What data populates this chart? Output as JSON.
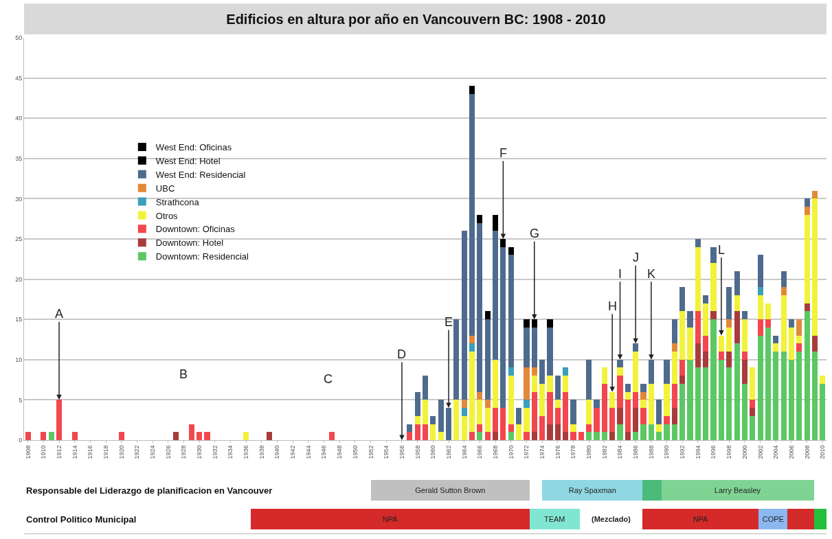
{
  "chart_data": [
    {
      "type": "bar",
      "stacked": true,
      "title": "Edificios en altura por año en Vancouvern BC: 1908 - 2010",
      "x": [
        1908,
        1909,
        1910,
        1911,
        1912,
        1913,
        1914,
        1915,
        1916,
        1917,
        1918,
        1919,
        1920,
        1921,
        1922,
        1923,
        1924,
        1925,
        1926,
        1927,
        1928,
        1929,
        1930,
        1931,
        1932,
        1933,
        1934,
        1935,
        1936,
        1937,
        1938,
        1939,
        1940,
        1941,
        1942,
        1943,
        1944,
        1945,
        1946,
        1947,
        1948,
        1949,
        1950,
        1951,
        1952,
        1953,
        1954,
        1955,
        1956,
        1957,
        1958,
        1959,
        1960,
        1961,
        1962,
        1963,
        1964,
        1965,
        1966,
        1967,
        1968,
        1969,
        1970,
        1971,
        1972,
        1973,
        1974,
        1975,
        1976,
        1977,
        1978,
        1979,
        1980,
        1981,
        1982,
        1983,
        1984,
        1985,
        1986,
        1987,
        1988,
        1989,
        1990,
        1991,
        1992,
        1993,
        1994,
        1995,
        1996,
        1997,
        1998,
        1999,
        2000,
        2001,
        2002,
        2003,
        2004,
        2005,
        2006,
        2007,
        2008,
        2009,
        2010
      ],
      "series": [
        {
          "name": "Downtown: Residencial",
          "color": "#5cc864",
          "values": [
            0,
            0,
            0,
            1,
            0,
            0,
            0,
            0,
            0,
            0,
            0,
            0,
            0,
            0,
            0,
            0,
            0,
            0,
            0,
            0,
            0,
            0,
            0,
            0,
            0,
            0,
            0,
            0,
            0,
            0,
            0,
            0,
            0,
            0,
            0,
            0,
            0,
            0,
            0,
            0,
            0,
            0,
            0,
            0,
            0,
            0,
            0,
            0,
            0,
            0,
            0,
            0,
            0,
            0,
            0,
            0,
            0,
            0,
            1,
            0,
            0,
            0,
            1,
            0,
            0,
            0,
            0,
            0,
            0,
            0,
            0,
            0,
            1,
            1,
            1,
            0,
            2,
            0,
            1,
            2,
            2,
            1,
            2,
            2,
            7,
            10,
            9,
            9,
            15,
            10,
            9,
            12,
            7,
            3,
            13,
            14,
            11,
            11,
            10,
            11,
            16,
            11,
            7
          ]
        },
        {
          "name": "Downtown: Hotel",
          "color": "#a83c3c",
          "values": [
            0,
            0,
            0,
            0,
            0,
            0,
            0,
            0,
            0,
            0,
            0,
            0,
            0,
            0,
            0,
            0,
            0,
            0,
            0,
            1,
            0,
            0,
            0,
            0,
            0,
            0,
            0,
            0,
            0,
            0,
            0,
            1,
            0,
            0,
            0,
            0,
            0,
            0,
            0,
            0,
            0,
            0,
            0,
            0,
            0,
            0,
            0,
            0,
            0,
            0,
            0,
            0,
            0,
            0,
            0,
            0,
            0,
            0,
            0,
            0,
            1,
            0,
            0,
            0,
            0,
            1,
            0,
            2,
            2,
            1,
            0,
            0,
            0,
            0,
            0,
            1,
            2,
            1,
            3,
            0,
            0,
            0,
            0,
            2,
            1,
            0,
            3,
            2,
            1,
            0,
            2,
            4,
            3,
            1,
            0,
            0,
            0,
            0,
            0,
            0,
            1,
            2,
            0
          ]
        },
        {
          "name": "Downtown: Oficinas",
          "color": "#f2474e",
          "values": [
            1,
            0,
            1,
            0,
            5,
            0,
            1,
            0,
            0,
            0,
            0,
            0,
            1,
            0,
            0,
            0,
            0,
            0,
            0,
            0,
            0,
            2,
            1,
            1,
            0,
            0,
            0,
            0,
            0,
            0,
            0,
            0,
            0,
            0,
            0,
            0,
            0,
            0,
            0,
            1,
            0,
            0,
            0,
            0,
            0,
            0,
            0,
            0,
            0,
            1,
            2,
            2,
            0,
            0,
            0,
            0,
            0,
            1,
            1,
            1,
            3,
            4,
            1,
            0,
            1,
            5,
            3,
            4,
            2,
            5,
            1,
            1,
            1,
            3,
            6,
            3,
            4,
            4,
            2,
            2,
            0,
            0,
            1,
            3,
            2,
            0,
            4,
            2,
            0,
            1,
            0,
            0,
            1,
            1,
            2,
            1,
            0,
            0,
            0,
            1,
            0,
            0,
            0
          ]
        },
        {
          "name": "Otros",
          "color": "#f2f23a",
          "values": [
            0,
            0,
            0,
            0,
            0,
            0,
            0,
            0,
            0,
            0,
            0,
            0,
            0,
            0,
            0,
            0,
            0,
            0,
            0,
            0,
            0,
            0,
            0,
            0,
            0,
            0,
            0,
            0,
            1,
            0,
            0,
            0,
            0,
            0,
            0,
            0,
            0,
            0,
            0,
            0,
            0,
            0,
            0,
            0,
            0,
            0,
            0,
            0,
            0,
            0,
            1,
            3,
            2,
            1,
            0,
            5,
            3,
            10,
            3,
            3,
            6,
            0,
            6,
            2,
            3,
            2,
            4,
            2,
            1,
            2,
            1,
            0,
            3,
            0,
            2,
            2,
            1,
            1,
            5,
            1,
            5,
            1,
            4,
            4,
            6,
            4,
            8,
            4,
            6,
            2,
            3,
            2,
            4,
            4,
            3,
            2,
            1,
            7,
            4,
            1,
            11,
            17,
            1
          ]
        },
        {
          "name": "Strathcona",
          "color": "#3a9fba",
          "values": [
            0,
            0,
            0,
            0,
            0,
            0,
            0,
            0,
            0,
            0,
            0,
            0,
            0,
            0,
            0,
            0,
            0,
            0,
            0,
            0,
            0,
            0,
            0,
            0,
            0,
            0,
            0,
            0,
            0,
            0,
            0,
            0,
            0,
            0,
            0,
            0,
            0,
            0,
            0,
            0,
            0,
            0,
            0,
            0,
            0,
            0,
            0,
            0,
            0,
            0,
            0,
            0,
            0,
            0,
            0,
            0,
            1,
            1,
            0,
            0,
            0,
            0,
            1,
            0,
            1,
            0,
            0,
            0,
            0,
            1,
            0,
            0,
            0,
            0,
            0,
            0,
            0,
            0,
            0,
            0,
            0,
            0,
            0,
            0,
            0,
            0,
            0,
            0,
            0,
            0,
            0,
            0,
            0,
            0,
            1,
            0,
            0,
            0,
            0,
            0,
            0,
            0,
            0
          ]
        },
        {
          "name": "UBC",
          "color": "#e2883a",
          "values": [
            0,
            0,
            0,
            0,
            0,
            0,
            0,
            0,
            0,
            0,
            0,
            0,
            0,
            0,
            0,
            0,
            0,
            0,
            0,
            0,
            0,
            0,
            0,
            0,
            0,
            0,
            0,
            0,
            0,
            0,
            0,
            0,
            0,
            0,
            0,
            0,
            0,
            0,
            0,
            0,
            0,
            0,
            0,
            0,
            0,
            0,
            0,
            0,
            0,
            0,
            0,
            0,
            0,
            0,
            0,
            0,
            1,
            1,
            1,
            1,
            0,
            0,
            0,
            0,
            4,
            1,
            0,
            0,
            0,
            0,
            0,
            0,
            0,
            0,
            0,
            0,
            0,
            0,
            0,
            1,
            0,
            0,
            0,
            1,
            0,
            0,
            0,
            0,
            0,
            0,
            1,
            0,
            0,
            0,
            0,
            0,
            0,
            1,
            0,
            2,
            1,
            1,
            0
          ]
        },
        {
          "name": "West End: Residencial",
          "color": "#4e6b8e",
          "values": [
            0,
            0,
            0,
            0,
            0,
            0,
            0,
            0,
            0,
            0,
            0,
            0,
            0,
            0,
            0,
            0,
            0,
            0,
            0,
            0,
            0,
            0,
            0,
            0,
            0,
            0,
            0,
            0,
            0,
            0,
            0,
            0,
            0,
            0,
            0,
            0,
            0,
            0,
            0,
            0,
            0,
            0,
            0,
            0,
            0,
            0,
            0,
            0,
            0,
            1,
            3,
            3,
            1,
            4,
            4,
            10,
            21,
            30,
            21,
            10,
            16,
            20,
            14,
            2,
            5,
            5,
            3,
            6,
            3,
            0,
            3,
            0,
            5,
            1,
            0,
            0,
            1,
            1,
            1,
            1,
            3,
            3,
            3,
            3,
            3,
            2,
            1,
            1,
            2,
            0,
            4,
            3,
            1,
            0,
            4,
            0,
            1,
            2,
            1,
            0,
            1,
            0,
            0
          ]
        },
        {
          "name": "West End: Hotel",
          "color": "#000000",
          "values": [
            0,
            0,
            0,
            0,
            0,
            0,
            0,
            0,
            0,
            0,
            0,
            0,
            0,
            0,
            0,
            0,
            0,
            0,
            0,
            0,
            0,
            0,
            0,
            0,
            0,
            0,
            0,
            0,
            0,
            0,
            0,
            0,
            0,
            0,
            0,
            0,
            0,
            0,
            0,
            0,
            0,
            0,
            0,
            0,
            0,
            0,
            0,
            0,
            0,
            0,
            0,
            0,
            0,
            0,
            0,
            0,
            0,
            1,
            1,
            1,
            1,
            1,
            1,
            0,
            1,
            1,
            0,
            1,
            0,
            0,
            0,
            0,
            0,
            0,
            0,
            0,
            0,
            0,
            0,
            0,
            0,
            0,
            0,
            0,
            0,
            0,
            0,
            0,
            0,
            0,
            0,
            0,
            0,
            0,
            0,
            0,
            0,
            0,
            0,
            0,
            0,
            0,
            0
          ]
        },
        {
          "name": "West End: Oficinas",
          "color": "#000000",
          "values": [
            0,
            0,
            0,
            0,
            0,
            0,
            0,
            0,
            0,
            0,
            0,
            0,
            0,
            0,
            0,
            0,
            0,
            0,
            0,
            0,
            0,
            0,
            0,
            0,
            0,
            0,
            0,
            0,
            0,
            0,
            0,
            0,
            0,
            0,
            0,
            0,
            0,
            0,
            0,
            0,
            0,
            0,
            0,
            0,
            0,
            0,
            0,
            0,
            0,
            0,
            0,
            0,
            0,
            0,
            0,
            0,
            0,
            0,
            0,
            0,
            1,
            0,
            0,
            0,
            0,
            0,
            0,
            0,
            0,
            0,
            0,
            0,
            0,
            0,
            0,
            0,
            0,
            0,
            0,
            0,
            0,
            0,
            0,
            0,
            0,
            0,
            0,
            0,
            0,
            0,
            0,
            0,
            0,
            0,
            0,
            0,
            0,
            0,
            0,
            0,
            0,
            0,
            0
          ]
        }
      ],
      "xlim": [
        1907.5,
        2010.5
      ],
      "xticks": [
        1908,
        1910,
        1912,
        1914,
        1916,
        1918,
        1920,
        1922,
        1924,
        1926,
        1928,
        1930,
        1932,
        1934,
        1936,
        1938,
        1940,
        1942,
        1944,
        1946,
        1948,
        1950,
        1952,
        1954,
        1956,
        1958,
        1960,
        1962,
        1964,
        1966,
        1968,
        1970,
        1972,
        1974,
        1976,
        1978,
        1980,
        1982,
        1984,
        1986,
        1988,
        1990,
        1992,
        1994,
        1996,
        1998,
        2000,
        2002,
        2004,
        2006,
        2008,
        2010
      ],
      "ylim": [
        0,
        50
      ],
      "yticks": [
        0,
        5,
        10,
        15,
        20,
        25,
        30,
        35,
        40,
        45,
        50
      ],
      "grid": "y",
      "legend": "left",
      "annotations": [
        "B",
        "C",
        {
          "text": "A",
          "x": 1912,
          "y": 5
        },
        {
          "text": "D",
          "x": 1956,
          "y": 0
        },
        {
          "text": "E",
          "x": 1962,
          "y": 4
        },
        {
          "text": "F",
          "x": 1969,
          "y": 25
        },
        {
          "text": "G",
          "x": 1973,
          "y": 15
        },
        {
          "text": "H",
          "x": 1983,
          "y": 6
        },
        {
          "text": "I",
          "x": 1984,
          "y": 10
        },
        {
          "text": "J",
          "x": 1986,
          "y": 12
        },
        {
          "text": "K",
          "x": 1988,
          "y": 10
        },
        {
          "text": "L",
          "x": 1997,
          "y": 13
        }
      ]
    },
    {
      "type": "bar",
      "orientation": "horizontal",
      "categories": [
        "Responsable del Liderazgo de planificacion en Vancouver",
        "Control Politico Municipal"
      ],
      "xlim": [
        1907.5,
        2010.5
      ],
      "tick_labels": "y",
      "annotations": [
        "(Mezclado)"
      ],
      "series": [
        {
          "name": "Gerald Sutton Brown",
          "color": "#c0c0c0",
          "values": [
            20.4,
            null
          ],
          "base": [
            1952,
            null
          ]
        },
        {
          "name": "Ray Spaxman",
          "color": "#8fd8e2",
          "values": [
            12.9,
            null
          ],
          "base": [
            1974,
            null
          ]
        },
        {
          "color": "#4cbb7a",
          "values": [
            2.4,
            null
          ],
          "base": [
            1986.9,
            null
          ]
        },
        {
          "name": "Larry Beasley",
          "color": "#80d493",
          "values": [
            19.6,
            null
          ],
          "base": [
            1989.3,
            null
          ]
        },
        {
          "name": "NPA",
          "color": "#d42a2a",
          "values": [
            null,
            35.8
          ],
          "base": [
            null,
            1936.6
          ]
        },
        {
          "name": "TEAM",
          "color": "#80e6d2",
          "values": [
            null,
            6.4
          ],
          "base": [
            null,
            1972.4
          ]
        },
        {
          "name": "NPA",
          "color": "#d42a2a",
          "values": [
            null,
            14.9
          ],
          "base": [
            null,
            1986.9
          ]
        },
        {
          "name": "COPE",
          "color": "#8cb8f0",
          "values": [
            null,
            3.7
          ],
          "base": [
            null,
            2001.8
          ]
        },
        {
          "color": "#d42a2a",
          "values": [
            null,
            3.4
          ],
          "base": [
            null,
            2005.5
          ]
        },
        {
          "color": "#22c03a",
          "values": [
            null,
            1.6
          ],
          "base": [
            null,
            2008.9
          ]
        }
      ]
    }
  ]
}
